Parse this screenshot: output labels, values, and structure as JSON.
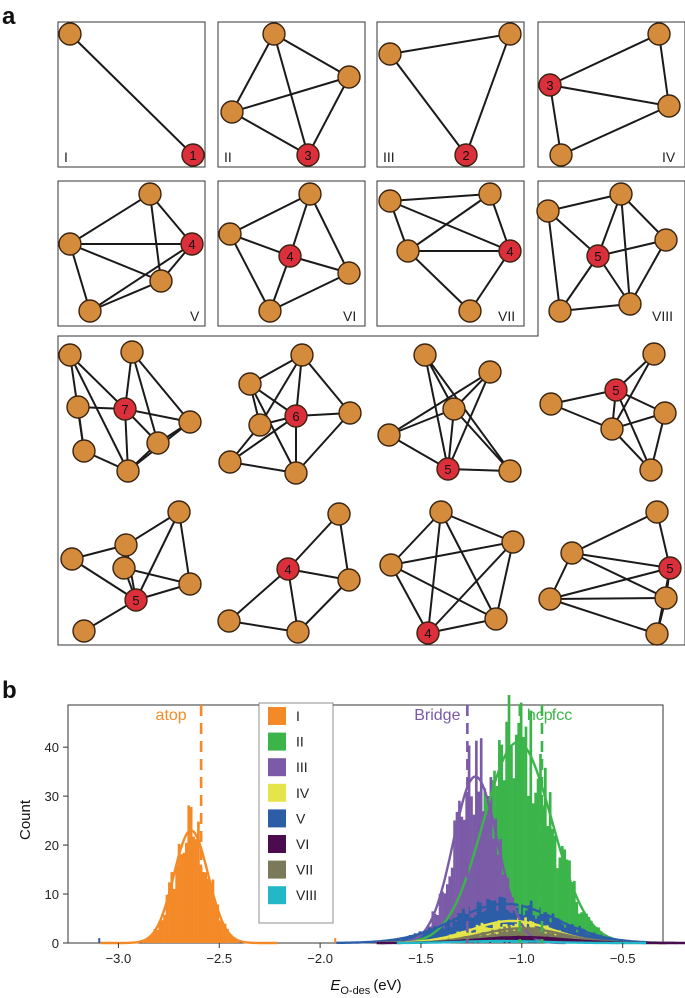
{
  "panel_labels": {
    "a": "a",
    "b": "b"
  },
  "colors": {
    "node": "#d48b3c",
    "site": "#dc2f3c",
    "edge": "#1a1a1a",
    "frame": "#333333"
  },
  "motifs": [
    {
      "id": "I",
      "label": "I",
      "site_coordination": "1"
    },
    {
      "id": "II",
      "label": "II",
      "site_coordination": "3"
    },
    {
      "id": "III",
      "label": "III",
      "site_coordination": "2"
    },
    {
      "id": "IV",
      "label": "IV",
      "site_coordination": "3"
    },
    {
      "id": "V",
      "label": "V",
      "site_coordination": "4"
    },
    {
      "id": "VI",
      "label": "VI",
      "site_coordination": "4"
    },
    {
      "id": "VII",
      "label": "VII",
      "site_coordination": "4"
    },
    {
      "id": "VIII",
      "label": "VIII",
      "site_coordination": "5"
    }
  ],
  "extra_graphs_site_coordination": [
    "7",
    "6",
    "5",
    "5",
    "5",
    "4",
    "4",
    "5"
  ],
  "chart_data": {
    "type": "histogram",
    "xlabel_main": "E",
    "xlabel_sub": "O-des",
    "xlabel_unit": "(eV)",
    "ylabel": "Count",
    "xlim": [
      -3.25,
      -0.3
    ],
    "ylim": [
      0,
      48
    ],
    "x_ticks": [
      "-3.0",
      "-2.5",
      "-2.0",
      "-1.5",
      "-1.0",
      "-0.5"
    ],
    "y_ticks": [
      "0",
      "10",
      "20",
      "30",
      "40"
    ],
    "legend": {
      "position": "top-center",
      "entries": [
        {
          "label": "I",
          "color": "#f48a27"
        },
        {
          "label": "II",
          "color": "#3bb54a"
        },
        {
          "label": "III",
          "color": "#7b5ba8"
        },
        {
          "label": "IV",
          "color": "#e5e54a"
        },
        {
          "label": "V",
          "color": "#2c5ea8"
        },
        {
          "label": "VI",
          "color": "#4a0c4f"
        },
        {
          "label": "VII",
          "color": "#7a7a5a"
        },
        {
          "label": "VIII",
          "color": "#22b8c8"
        }
      ]
    },
    "site_markers": [
      {
        "label": "atop",
        "x": -2.59,
        "color": "#f48a27"
      },
      {
        "label": "Bridge",
        "x": -1.27,
        "color": "#7b5ba8"
      },
      {
        "label": "hcp",
        "x": -1.01,
        "color": "#3bb54a"
      },
      {
        "label": "fcc",
        "x": -0.9,
        "color": "#3bb54a"
      }
    ],
    "series": [
      {
        "name": "I",
        "color": "#f48a27",
        "mu": -2.64,
        "sigma": 0.085,
        "peak": 23,
        "range": [
          -2.97,
          -2.33
        ]
      },
      {
        "name": "II",
        "color": "#3bb54a",
        "mu": -1.02,
        "sigma": 0.17,
        "peak": 41,
        "range": [
          -1.55,
          -0.47
        ]
      },
      {
        "name": "III",
        "color": "#7b5ba8",
        "mu": -1.23,
        "sigma": 0.11,
        "peak": 34,
        "range": [
          -1.58,
          -0.9
        ]
      },
      {
        "name": "V",
        "color": "#2c5ea8",
        "mu": -1.08,
        "sigma": 0.25,
        "peak": 8,
        "range": [
          -1.8,
          -0.35
        ]
      },
      {
        "name": "IV",
        "color": "#e5e54a",
        "mu": -1.05,
        "sigma": 0.2,
        "peak": 4.5,
        "range": [
          -1.6,
          -0.4
        ]
      },
      {
        "name": "VII",
        "color": "#7a7a5a",
        "mu": -1.0,
        "sigma": 0.2,
        "peak": 3,
        "range": [
          -1.5,
          -0.4
        ]
      },
      {
        "name": "VI",
        "color": "#4a0c4f",
        "mu": -1.0,
        "sigma": 0.22,
        "peak": 1.2,
        "range": [
          -1.6,
          -0.3
        ]
      },
      {
        "name": "VIII",
        "color": "#22b8c8",
        "mu": -1.1,
        "sigma": 0.2,
        "peak": 0.4,
        "range": [
          -1.5,
          -0.5
        ]
      }
    ],
    "outliers": [
      {
        "x": -3.1,
        "count": 1,
        "color": "#2c5ea8"
      },
      {
        "x": -1.93,
        "count": 1,
        "color": "#f48a27"
      }
    ]
  }
}
